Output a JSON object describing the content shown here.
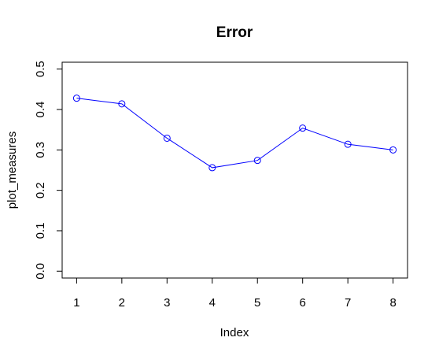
{
  "chart_data": {
    "type": "line",
    "title": "Error",
    "xlabel": "Index",
    "ylabel": "plot_measures",
    "x": [
      1,
      2,
      3,
      4,
      5,
      6,
      7,
      8
    ],
    "series": [
      {
        "values": [
          0.428,
          0.414,
          0.329,
          0.256,
          0.274,
          0.354,
          0.314,
          0.3
        ]
      }
    ],
    "xticks": [
      "1",
      "2",
      "3",
      "4",
      "5",
      "6",
      "7",
      "8"
    ],
    "yticks": [
      "0.0",
      "0.1",
      "0.2",
      "0.3",
      "0.4",
      "0.5"
    ],
    "xlim": [
      0.68,
      8.32
    ],
    "ylim": [
      -0.017,
      0.517
    ],
    "grid": false,
    "colors": {
      "line": "#0000ff",
      "axis": "#000000"
    }
  }
}
